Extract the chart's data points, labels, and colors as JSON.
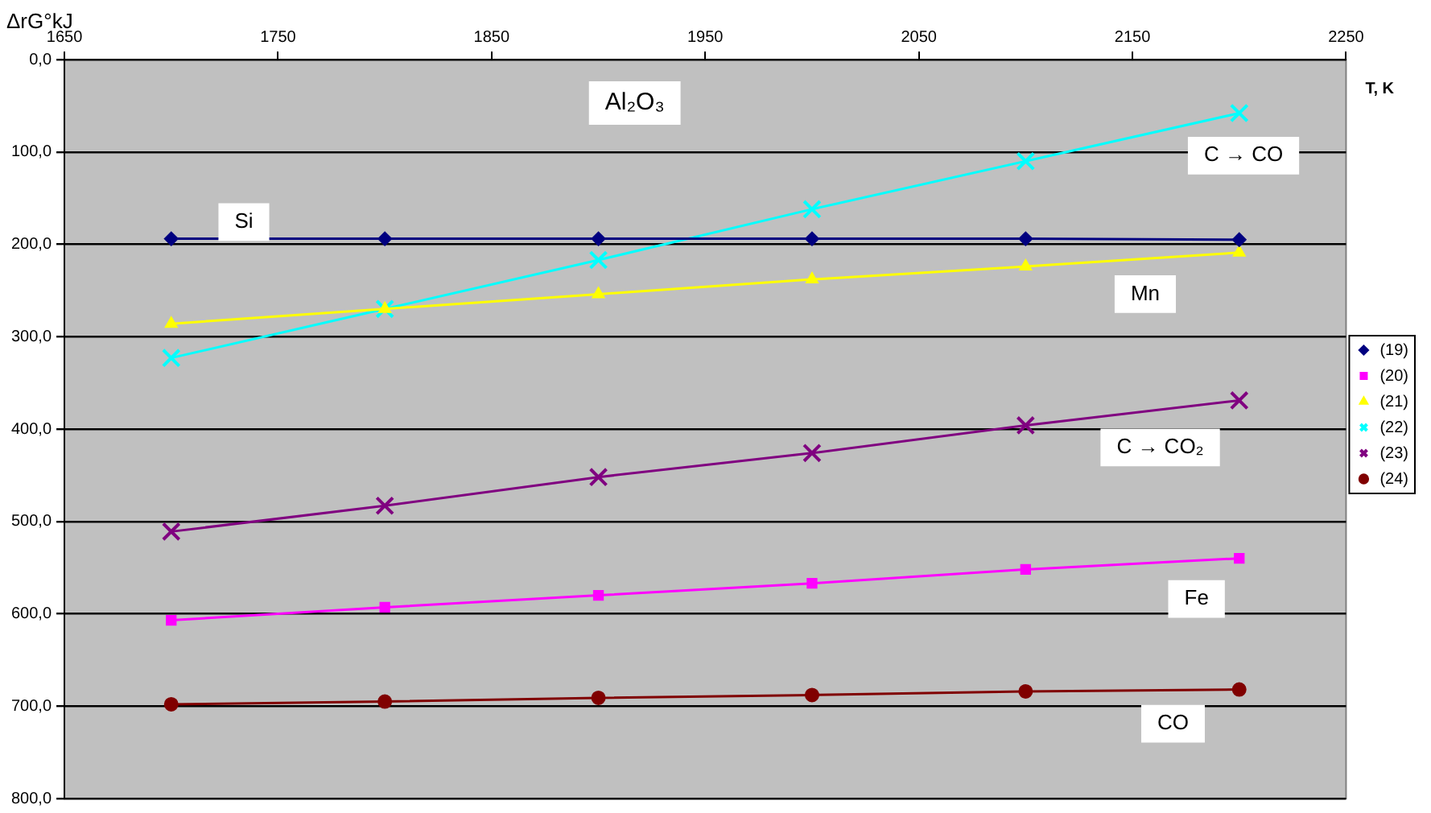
{
  "chart_data": {
    "type": "line",
    "title": "Al₂O₃",
    "xlabel": "T, K",
    "ylabel": "ΔrG°kJ",
    "x": [
      1700,
      1800,
      1900,
      2000,
      2100,
      2200
    ],
    "xlim": [
      1650,
      2250
    ],
    "xticks": [
      1650,
      1750,
      1850,
      1950,
      2050,
      2150,
      2250
    ],
    "ylim": [
      800,
      0
    ],
    "yticks": [
      {
        "value": 0,
        "label": "0,0"
      },
      {
        "value": 100,
        "label": "100,0"
      },
      {
        "value": 200,
        "label": "200,0"
      },
      {
        "value": 300,
        "label": "300,0"
      },
      {
        "value": 400,
        "label": "400,0"
      },
      {
        "value": 500,
        "label": "500,0"
      },
      {
        "value": 600,
        "label": "600,0"
      },
      {
        "value": 700,
        "label": "700,0"
      },
      {
        "value": 800,
        "label": "800,0"
      }
    ],
    "series": [
      {
        "name": "(19)",
        "color": "#000080",
        "marker": "diamond",
        "values": [
          194,
          194,
          194,
          194,
          194,
          195
        ]
      },
      {
        "name": "(20)",
        "color": "#ff00ff",
        "marker": "square",
        "values": [
          607,
          593,
          580,
          567,
          552,
          540
        ]
      },
      {
        "name": "(21)",
        "color": "#ffff00",
        "marker": "triangle",
        "values": [
          286,
          270,
          254,
          238,
          224,
          209
        ]
      },
      {
        "name": "(22)",
        "color": "#00ffff",
        "marker": "cross",
        "values": [
          323,
          270,
          217,
          162,
          110,
          58
        ]
      },
      {
        "name": "(23)",
        "color": "#800080",
        "marker": "cross",
        "values": [
          511,
          483,
          452,
          426,
          396,
          369
        ]
      },
      {
        "name": "(24)",
        "color": "#800000",
        "marker": "circle",
        "values": [
          698,
          695,
          691,
          688,
          684,
          682
        ]
      }
    ],
    "annotations": [
      {
        "text": "Si",
        "x": 1734,
        "y": 176
      },
      "C → CO",
      {
        "text": "Mn",
        "x": 2156,
        "y": 254
      },
      "C → CO₂",
      {
        "text": "Fe",
        "x": 2180,
        "y": 584
      },
      {
        "text": "CO",
        "x": 2169,
        "y": 719
      }
    ],
    "grid": "y",
    "legend": "right",
    "line_style": "solid"
  }
}
